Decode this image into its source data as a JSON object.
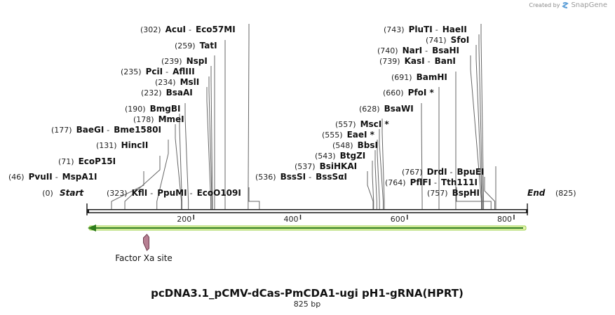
{
  "credit": {
    "text": "Created by",
    "brand": "SnapGene"
  },
  "map": {
    "length": 825,
    "title": "pcDNA3.1_pCMV-dCas-PmCDA1-ugi pH1-gRNA(HPRT)",
    "subtitle": "825 bp",
    "start_label": "Start",
    "end_label": "End",
    "start_pos": "(0)",
    "end_pos": "(825)",
    "ticks": [
      {
        "value": 200,
        "label": "200"
      },
      {
        "value": 400,
        "label": "400"
      },
      {
        "value": 600,
        "label": "600"
      },
      {
        "value": 800,
        "label": "800"
      }
    ],
    "feature": {
      "label": "Factor Xa site",
      "pos": 111
    },
    "sites": [
      {
        "pos": "(302)",
        "names": [
          "AcuI",
          "Eco57MI"
        ],
        "bp": 302
      },
      {
        "pos": "(259)",
        "names": [
          "TatI"
        ],
        "bp": 259
      },
      {
        "pos": "(239)",
        "names": [
          "NspI"
        ],
        "bp": 239
      },
      {
        "pos": "(235)",
        "names": [
          "PciI",
          "AflIII"
        ],
        "bp": 235
      },
      {
        "pos": "(234)",
        "names": [
          "MslI"
        ],
        "bp": 234
      },
      {
        "pos": "(232)",
        "names": [
          "BsaAI"
        ],
        "bp": 232
      },
      {
        "pos": "(190)",
        "names": [
          "BmgBI"
        ],
        "bp": 190
      },
      {
        "pos": "(178)",
        "names": [
          "MmeI"
        ],
        "bp": 178
      },
      {
        "pos": "(177)",
        "names": [
          "BaeGI",
          "Bme1580I"
        ],
        "bp": 177
      },
      {
        "pos": "(131)",
        "names": [
          "HincII"
        ],
        "bp": 131
      },
      {
        "pos": "(71)",
        "names": [
          "EcoP15I"
        ],
        "bp": 71
      },
      {
        "pos": "(46)",
        "names": [
          "PvuII",
          "MspA1I"
        ],
        "bp": 46
      },
      {
        "pos": "(323)",
        "names": [
          "KflI",
          "PpuMI",
          "EcoO109I"
        ],
        "bp": 323
      },
      {
        "pos": "(743)",
        "names": [
          "PluTI",
          "HaeII"
        ],
        "bp": 743
      },
      {
        "pos": "(741)",
        "names": [
          "SfoI"
        ],
        "bp": 741
      },
      {
        "pos": "(740)",
        "names": [
          "NarI",
          "BsaHI"
        ],
        "bp": 740
      },
      {
        "pos": "(739)",
        "names": [
          "KasI",
          "BanI"
        ],
        "bp": 739
      },
      {
        "pos": "(691)",
        "names": [
          "BamHI"
        ],
        "bp": 691
      },
      {
        "pos": "(660)",
        "names": [
          "PfoI *"
        ],
        "bp": 660
      },
      {
        "pos": "(628)",
        "names": [
          "BsaWI"
        ],
        "bp": 628
      },
      {
        "pos": "(557)",
        "names": [
          "MscI *"
        ],
        "bp": 557
      },
      {
        "pos": "(555)",
        "names": [
          "EaeI *"
        ],
        "bp": 555
      },
      {
        "pos": "(548)",
        "names": [
          "BbsI"
        ],
        "bp": 548
      },
      {
        "pos": "(543)",
        "names": [
          "BtgZI"
        ],
        "bp": 543
      },
      {
        "pos": "(537)",
        "names": [
          "BsiHKAI"
        ],
        "bp": 537
      },
      {
        "pos": "(536)",
        "names": [
          "BssSI",
          "BssSαI"
        ],
        "bp": 536
      },
      {
        "pos": "(767)",
        "names": [
          "DrdI",
          "BpuEI"
        ],
        "bp": 767
      },
      {
        "pos": "(764)",
        "names": [
          "PflFI",
          "Tth111I"
        ],
        "bp": 764
      },
      {
        "pos": "(757)",
        "names": [
          "BspHI"
        ],
        "bp": 757
      }
    ]
  }
}
